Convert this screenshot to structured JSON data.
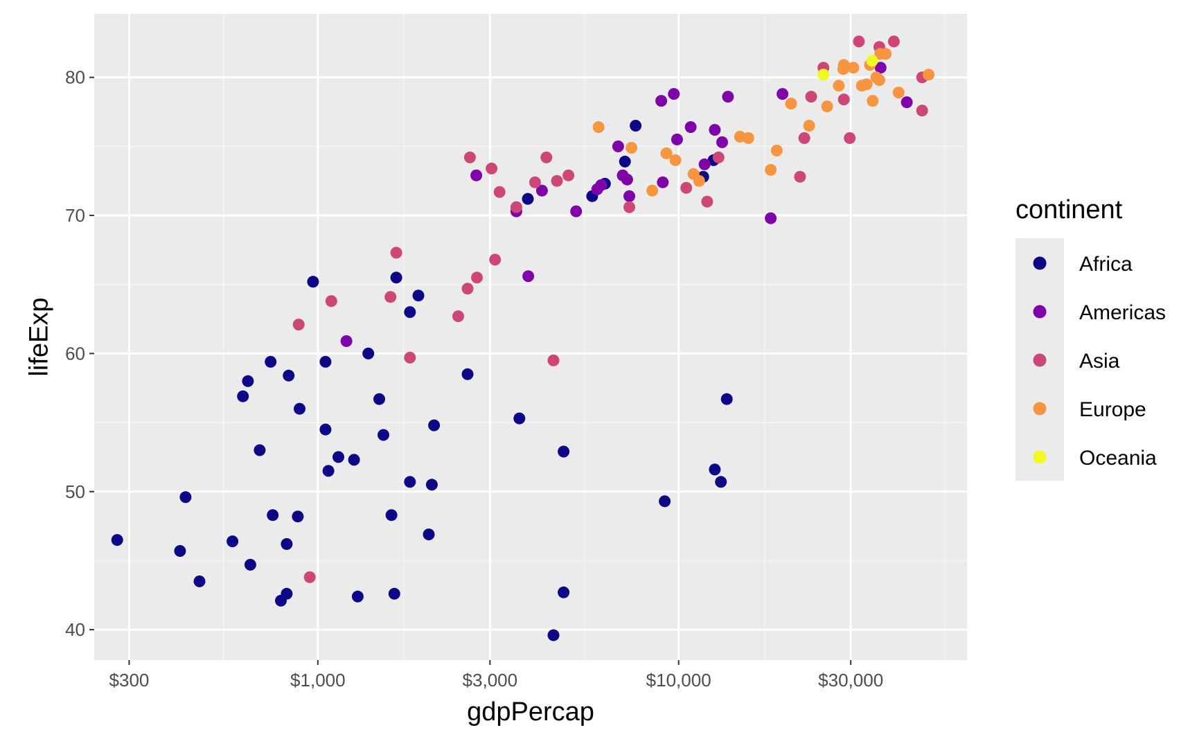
{
  "chart_data": {
    "type": "scatter",
    "xlabel": "gdpPercap",
    "ylabel": "lifeExp",
    "x_scale": "log10",
    "xlim": [
      240,
      63000
    ],
    "ylim": [
      37.8,
      84.6
    ],
    "x_ticks": [
      300,
      1000,
      3000,
      10000,
      30000
    ],
    "x_tick_labels": [
      "$300",
      "$1,000",
      "$3,000",
      "$10,000",
      "$30,000"
    ],
    "x_minor_ticks": [
      547.7,
      1732.1,
      5477.2,
      17320.5,
      54772.3
    ],
    "y_ticks": [
      40,
      50,
      60,
      70,
      80
    ],
    "y_tick_labels": [
      "40",
      "50",
      "60",
      "70",
      "80"
    ],
    "y_minor_ticks": [
      45,
      55,
      65,
      75
    ],
    "grid": true,
    "legend": {
      "title": "continent",
      "position": "right",
      "entries": [
        {
          "label": "Africa",
          "color": "#0d0887"
        },
        {
          "label": "Americas",
          "color": "#7e03a8"
        },
        {
          "label": "Asia",
          "color": "#cc4778"
        },
        {
          "label": "Europe",
          "color": "#f89540"
        },
        {
          "label": "Oceania",
          "color": "#f0f921"
        }
      ]
    },
    "colors": {
      "panel_bg": "#ebebeb",
      "grid_major": "#ffffff",
      "grid_minor": "#f5f5f5"
    },
    "series": [
      {
        "name": "Africa",
        "color": "#0d0887",
        "points": [
          [
            278,
            46.5
          ],
          [
            415,
            45.7
          ],
          [
            430,
            49.6
          ],
          [
            470,
            43.5
          ],
          [
            580,
            46.4
          ],
          [
            620,
            56.9
          ],
          [
            640,
            58.0
          ],
          [
            690,
            53.0
          ],
          [
            740,
            59.4
          ],
          [
            750,
            48.3
          ],
          [
            650,
            44.7
          ],
          [
            790,
            42.1
          ],
          [
            820,
            42.6
          ],
          [
            820,
            46.2
          ],
          [
            830,
            58.4
          ],
          [
            880,
            48.2
          ],
          [
            890,
            56.0
          ],
          [
            970,
            65.2
          ],
          [
            1050,
            54.5
          ],
          [
            1050,
            59.4
          ],
          [
            1070,
            51.5
          ],
          [
            1140,
            52.5
          ],
          [
            1260,
            52.3
          ],
          [
            1290,
            42.4
          ],
          [
            1380,
            60.0
          ],
          [
            1480,
            56.7
          ],
          [
            1520,
            54.1
          ],
          [
            1600,
            48.3
          ],
          [
            1630,
            42.6
          ],
          [
            1650,
            65.5
          ],
          [
            1800,
            50.7
          ],
          [
            1800,
            63.0
          ],
          [
            1900,
            64.2
          ],
          [
            2030,
            46.9
          ],
          [
            2070,
            50.5
          ],
          [
            2100,
            54.8
          ],
          [
            2600,
            58.5
          ],
          [
            3620,
            55.3
          ],
          [
            3820,
            71.2
          ],
          [
            4500,
            39.6
          ],
          [
            4800,
            52.9
          ],
          [
            4800,
            42.7
          ],
          [
            5760,
            71.4
          ],
          [
            6250,
            72.3
          ],
          [
            7100,
            73.9
          ],
          [
            7600,
            76.5
          ],
          [
            9150,
            49.3
          ],
          [
            11700,
            72.8
          ],
          [
            12500,
            74.0
          ],
          [
            12600,
            51.6
          ],
          [
            13100,
            50.7
          ],
          [
            13600,
            56.7
          ]
        ]
      },
      {
        "name": "Americas",
        "color": "#7e03a8",
        "points": [
          [
            1200,
            60.9
          ],
          [
            2750,
            72.9
          ],
          [
            3550,
            70.3
          ],
          [
            3830,
            65.6
          ],
          [
            4180,
            71.8
          ],
          [
            5200,
            70.3
          ],
          [
            5950,
            71.9
          ],
          [
            6100,
            72.2
          ],
          [
            6800,
            75.0
          ],
          [
            7000,
            72.9
          ],
          [
            7200,
            72.6
          ],
          [
            7300,
            71.4
          ],
          [
            8950,
            78.3
          ],
          [
            9040,
            72.4
          ],
          [
            9700,
            78.8
          ],
          [
            9900,
            75.5
          ],
          [
            10800,
            76.4
          ],
          [
            11800,
            73.7
          ],
          [
            12600,
            76.2
          ],
          [
            13200,
            75.3
          ],
          [
            13700,
            78.6
          ],
          [
            18000,
            69.8
          ],
          [
            19400,
            78.8
          ],
          [
            36300,
            80.7
          ],
          [
            42900,
            78.2
          ]
        ]
      },
      {
        "name": "Asia",
        "color": "#cc4778",
        "points": [
          [
            885,
            62.1
          ],
          [
            950,
            43.8
          ],
          [
            1090,
            63.8
          ],
          [
            1590,
            64.1
          ],
          [
            1650,
            67.3
          ],
          [
            1800,
            59.7
          ],
          [
            2450,
            62.7
          ],
          [
            2600,
            64.7
          ],
          [
            2760,
            65.5
          ],
          [
            2640,
            74.2
          ],
          [
            3030,
            73.4
          ],
          [
            3100,
            66.8
          ],
          [
            3190,
            71.7
          ],
          [
            3550,
            70.6
          ],
          [
            4000,
            72.4
          ],
          [
            4300,
            74.2
          ],
          [
            4500,
            59.5
          ],
          [
            4600,
            72.5
          ],
          [
            4950,
            72.9
          ],
          [
            7300,
            70.6
          ],
          [
            10500,
            72.0
          ],
          [
            12000,
            71.0
          ],
          [
            12900,
            74.2
          ],
          [
            21700,
            72.8
          ],
          [
            22300,
            75.6
          ],
          [
            23300,
            78.6
          ],
          [
            25200,
            80.7
          ],
          [
            28700,
            78.4
          ],
          [
            29800,
            75.6
          ],
          [
            31600,
            82.6
          ],
          [
            36000,
            82.2
          ],
          [
            39500,
            82.6
          ],
          [
            47300,
            80.0
          ],
          [
            47300,
            77.6
          ]
        ]
      },
      {
        "name": "Europe",
        "color": "#f89540",
        "points": [
          [
            6000,
            76.4
          ],
          [
            7400,
            74.9
          ],
          [
            8450,
            71.8
          ],
          [
            9250,
            74.5
          ],
          [
            9800,
            74.0
          ],
          [
            11000,
            73.0
          ],
          [
            11400,
            72.5
          ],
          [
            14800,
            75.7
          ],
          [
            15600,
            75.6
          ],
          [
            18000,
            73.3
          ],
          [
            18700,
            74.7
          ],
          [
            20500,
            78.1
          ],
          [
            23000,
            76.5
          ],
          [
            25800,
            77.9
          ],
          [
            27800,
            79.4
          ],
          [
            28600,
            80.6
          ],
          [
            28700,
            80.9
          ],
          [
            30500,
            80.7
          ],
          [
            32200,
            79.4
          ],
          [
            33200,
            79.5
          ],
          [
            33900,
            80.9
          ],
          [
            34500,
            78.3
          ],
          [
            35300,
            80.0
          ],
          [
            36000,
            79.8
          ],
          [
            36200,
            81.7
          ],
          [
            37500,
            81.7
          ],
          [
            40700,
            78.9
          ],
          [
            49300,
            80.2
          ]
        ]
      },
      {
        "name": "Oceania",
        "color": "#f0f921",
        "points": [
          [
            25200,
            80.2
          ],
          [
            34400,
            81.2
          ]
        ]
      }
    ]
  }
}
